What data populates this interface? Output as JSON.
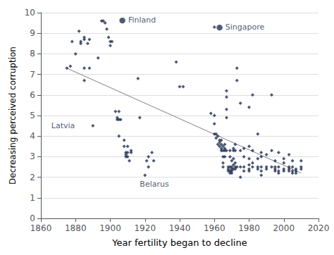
{
  "chart_data": {
    "type": "scatter",
    "xlabel": "Year fertility began to decline",
    "ylabel": "Decreasing perceived corruption",
    "xlim": [
      1860,
      2020
    ],
    "ylim": [
      0,
      10
    ],
    "xticks": [
      1860,
      1880,
      1900,
      1920,
      1940,
      1960,
      1980,
      2000,
      2020
    ],
    "yticks": [
      0,
      1,
      2,
      3,
      4,
      5,
      6,
      7,
      8,
      9,
      10
    ],
    "grid": true,
    "series": [
      {
        "type": "scatter",
        "color": "#1e2d50",
        "marker": "diamond",
        "x": [
          1875,
          1877,
          1878,
          1880,
          1882,
          1883,
          1883,
          1885,
          1885,
          1885,
          1885,
          1887,
          1888,
          1888,
          1890,
          1893,
          1895,
          1896,
          1897,
          1898,
          1899,
          1900,
          1900,
          1901,
          1903,
          1904,
          1904,
          1905,
          1905,
          1905,
          1906,
          1908,
          1908,
          1909,
          1909,
          1909,
          1910,
          1910,
          1910,
          1911,
          1912,
          1912,
          1916,
          1917,
          1920,
          1921,
          1922,
          1922,
          1924,
          1925,
          1938,
          1940,
          1942,
          1958,
          1960,
          1960,
          1960,
          1961,
          1961,
          1962,
          1962,
          1963,
          1963,
          1963,
          1964,
          1964,
          1964,
          1964,
          1965,
          1965,
          1965,
          1965,
          1965,
          1966,
          1966,
          1966,
          1966,
          1967,
          1967,
          1967,
          1967,
          1967,
          1968,
          1968,
          1968,
          1969,
          1969,
          1969,
          1969,
          1969,
          1970,
          1970,
          1970,
          1970,
          1970,
          1971,
          1971,
          1971,
          1971,
          1971,
          1972,
          1972,
          1972,
          1972,
          1972,
          1973,
          1973,
          1973,
          1975,
          1975,
          1975,
          1975,
          1977,
          1977,
          1977,
          1977,
          1980,
          1980,
          1980,
          1980,
          1980,
          1980,
          1982,
          1982,
          1982,
          1982,
          1985,
          1985,
          1985,
          1985,
          1987,
          1987,
          1987,
          1987,
          1987,
          1990,
          1990,
          1990,
          1993,
          1993,
          1993,
          1995,
          1995,
          1995,
          1995,
          1997,
          1997,
          1997,
          1997,
          2000,
          2000,
          2000,
          2000,
          2003,
          2003,
          2003,
          2003,
          2005,
          2005,
          2005,
          2005,
          2007,
          2007,
          2007,
          2010,
          2010,
          2010,
          1960
        ],
        "values": [
          7.3,
          7.4,
          8.6,
          8.0,
          9.1,
          8.5,
          8.6,
          8.7,
          8.8,
          7.3,
          6.7,
          8.5,
          8.7,
          7.3,
          4.5,
          7.8,
          9.6,
          9.6,
          9.5,
          9.2,
          8.8,
          8.6,
          8.4,
          8.6,
          5.2,
          4.8,
          4.9,
          4.8,
          5.2,
          4.0,
          4.8,
          3.8,
          3.5,
          3.2,
          3.0,
          3.1,
          3.5,
          3.0,
          3.2,
          2.8,
          3.3,
          3.2,
          6.8,
          4.9,
          2.1,
          2.8,
          3.0,
          2.5,
          3.2,
          2.8,
          7.6,
          6.4,
          6.4,
          5.1,
          5.0,
          4.6,
          4.1,
          3.9,
          4.1,
          4.0,
          3.6,
          3.8,
          3.7,
          3.5,
          3.8,
          3.6,
          3.4,
          3.3,
          3.5,
          3.3,
          3.0,
          2.7,
          2.5,
          3.6,
          3.4,
          3.3,
          3.0,
          6.2,
          5.9,
          5.3,
          4.9,
          3.3,
          2.5,
          2.4,
          2.3,
          3.3,
          3.0,
          2.5,
          2.3,
          2.2,
          2.8,
          2.5,
          2.4,
          2.3,
          2.2,
          3.4,
          3.3,
          2.9,
          2.6,
          2.4,
          3.6,
          3.3,
          2.7,
          2.5,
          2.4,
          7.3,
          6.7,
          2.5,
          5.6,
          3.3,
          2.5,
          2.0,
          3.4,
          3.0,
          2.5,
          2.3,
          5.4,
          3.5,
          2.9,
          2.6,
          2.4,
          2.3,
          6.0,
          3.3,
          2.7,
          2.5,
          4.1,
          2.9,
          2.5,
          2.4,
          3.2,
          3.0,
          2.5,
          2.3,
          2.1,
          3.1,
          2.5,
          2.4,
          6.0,
          3.3,
          2.5,
          2.8,
          2.5,
          2.4,
          2.3,
          3.2,
          2.5,
          2.3,
          2.2,
          2.9,
          2.7,
          2.4,
          2.3,
          3.1,
          2.5,
          2.4,
          2.3,
          2.8,
          2.5,
          2.3,
          2.2,
          2.4,
          2.3,
          2.2,
          2.8,
          2.5,
          2.4,
          9.3
        ]
      },
      {
        "type": "line",
        "color": "#808080",
        "line_style": "solid",
        "x": [
          1875,
          2010
        ],
        "values": [
          7.3,
          2.2
        ]
      }
    ],
    "annotations": [
      {
        "text": "● Finland",
        "x": 1905,
        "y": 9.65,
        "color": "#1e2d50"
      },
      {
        "text": "● Singapore",
        "x": 1961,
        "y": 9.3,
        "color": "#1e2d50"
      },
      {
        "text": "Latvia",
        "x": 1866,
        "y": 4.5,
        "color": "#1e2d50"
      },
      {
        "text": "Belarus",
        "x": 1917,
        "y": 1.65,
        "color": "#1e2d50"
      }
    ]
  }
}
